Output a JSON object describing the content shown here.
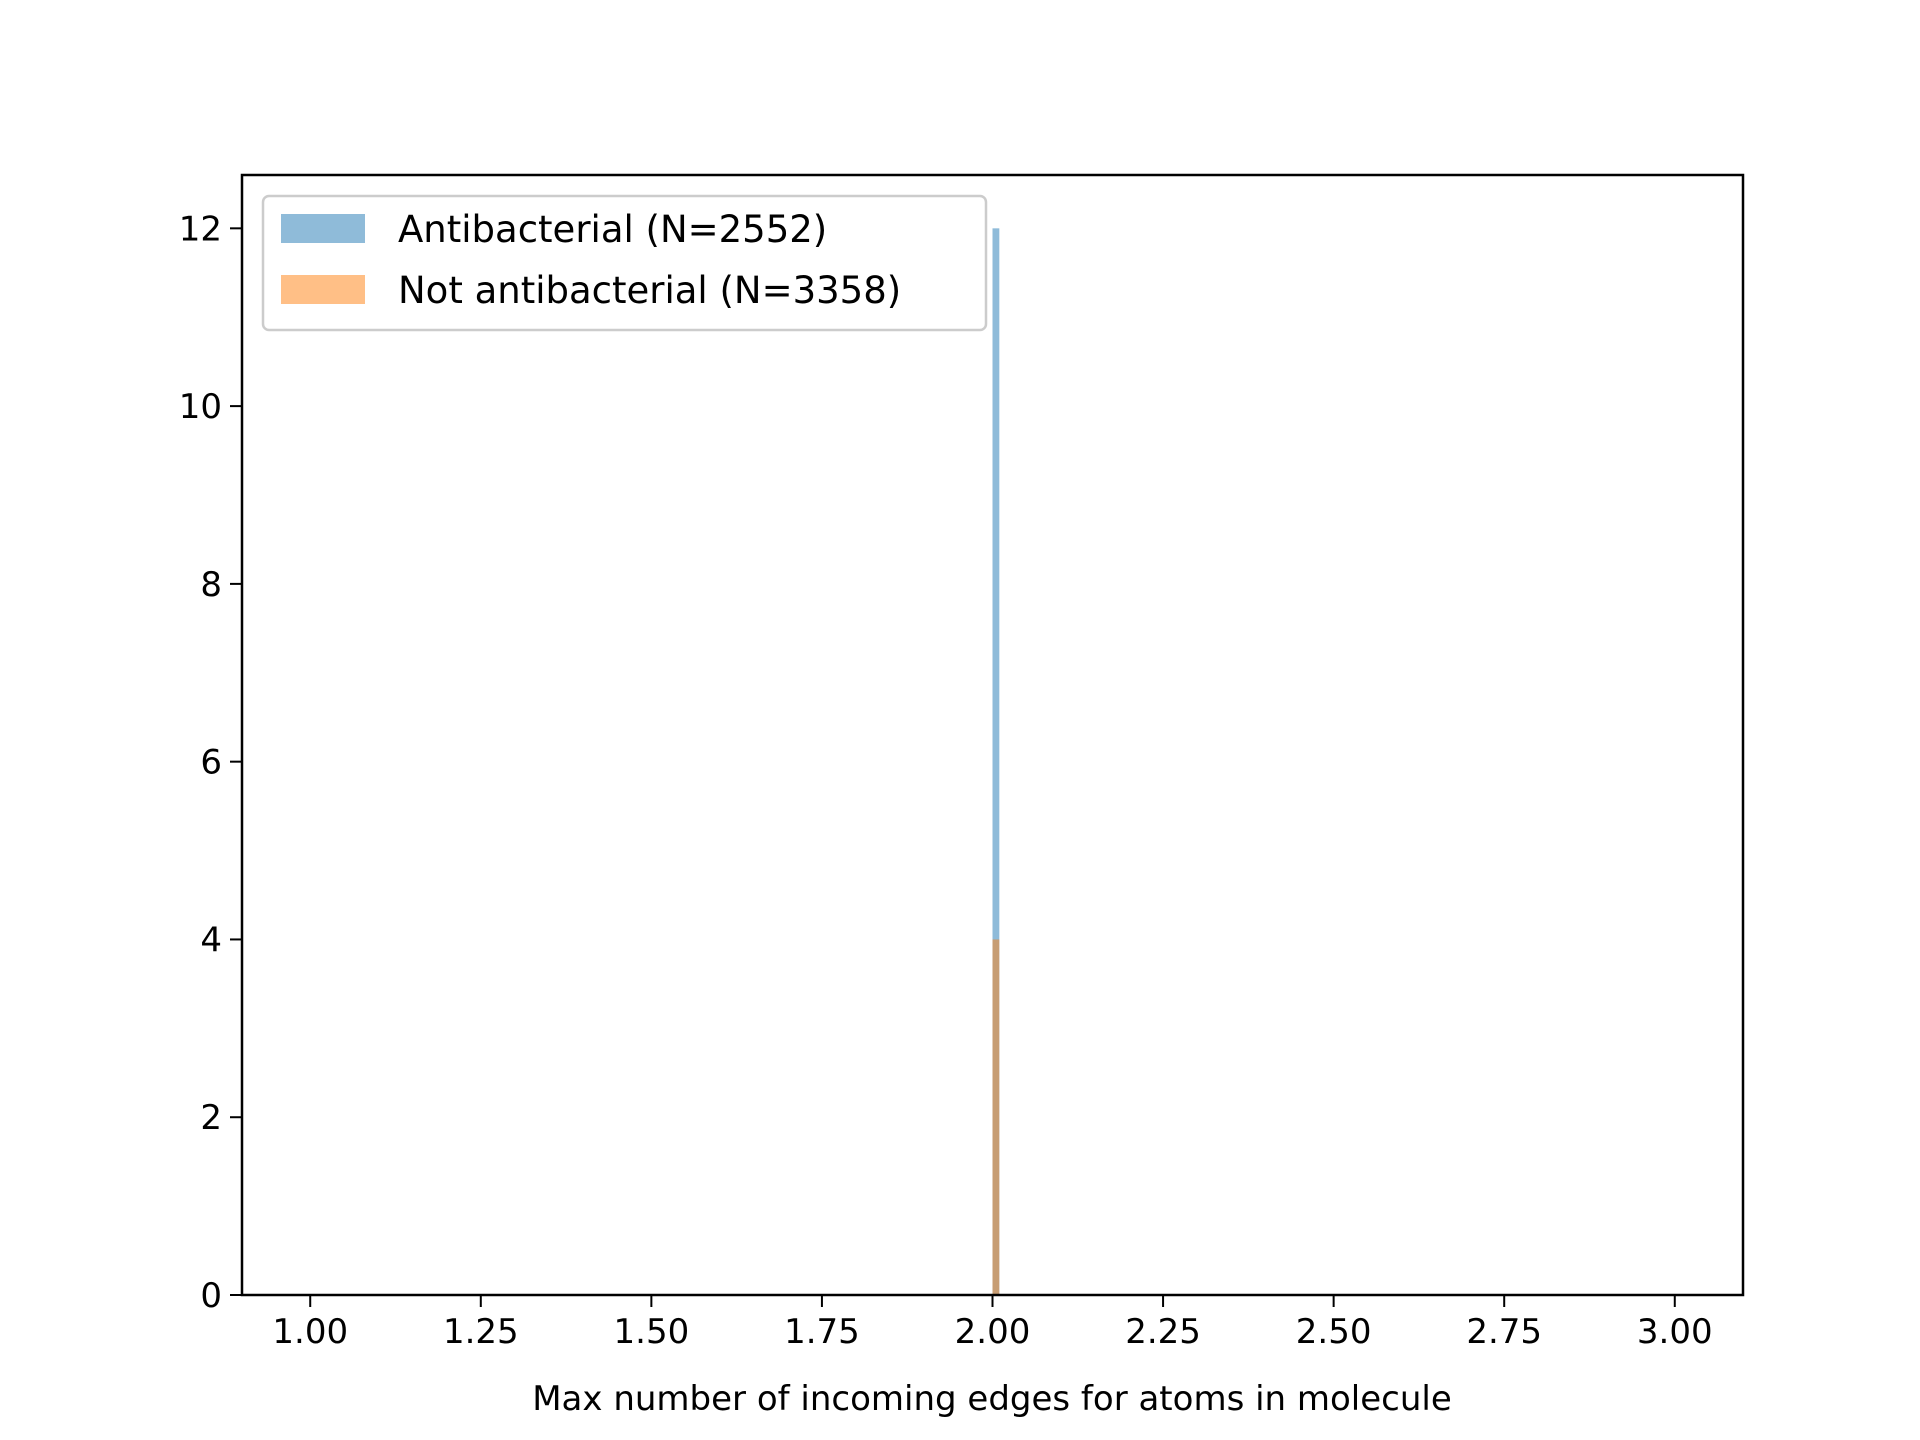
{
  "chart_data": {
    "type": "bar",
    "xlabel": "Max number of incoming edges for atoms in molecule",
    "ylabel": "",
    "xlim": [
      0.9,
      3.1
    ],
    "ylim": [
      0,
      12.6
    ],
    "xticks": [
      "1.00",
      "1.25",
      "1.50",
      "1.75",
      "2.00",
      "2.25",
      "2.50",
      "2.75",
      "3.00"
    ],
    "yticks": [
      "0",
      "2",
      "4",
      "6",
      "8",
      "10",
      "12"
    ],
    "legend_position": "upper-left",
    "series": [
      {
        "name": "Antibacterial (N=2552)",
        "color": "#1f77b4",
        "opacity": 0.5,
        "bins": [
          {
            "x0": 2.0,
            "x1": 2.01,
            "value": 12
          }
        ]
      },
      {
        "name": "Not antibacterial (N=3358)",
        "color": "#ff7f0e",
        "opacity": 0.5,
        "bins": [
          {
            "x0": 2.0,
            "x1": 2.01,
            "value": 4
          }
        ]
      }
    ]
  }
}
